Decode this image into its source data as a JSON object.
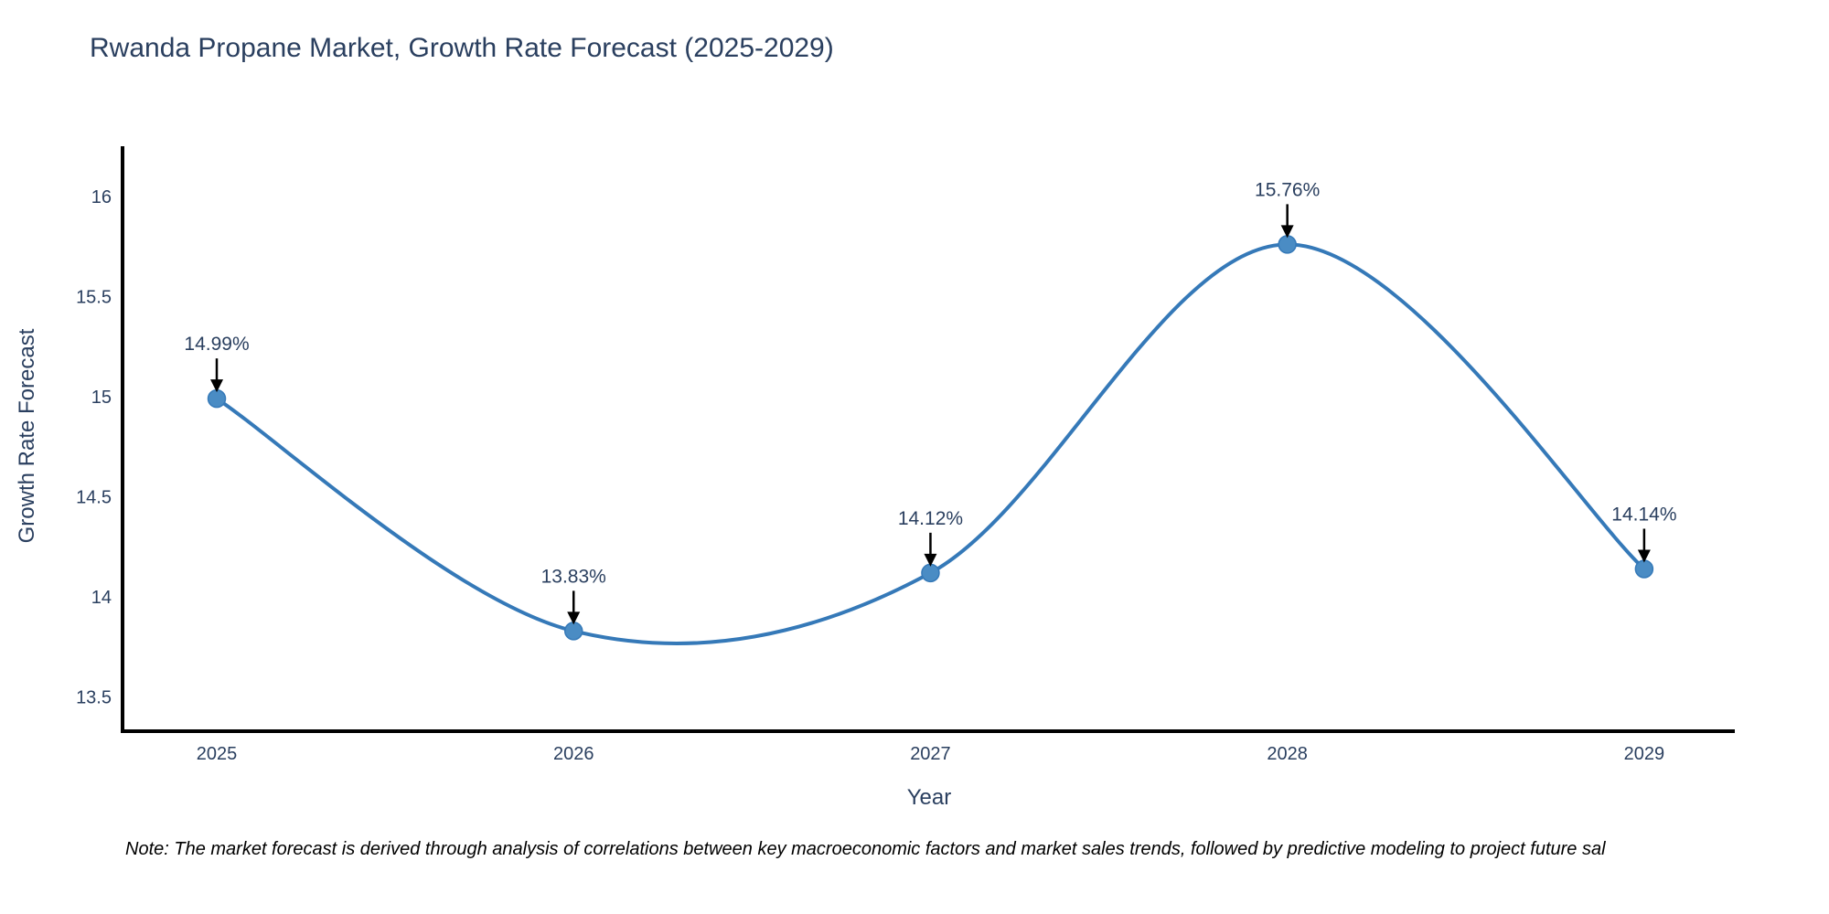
{
  "page": {
    "background": "#ffffff"
  },
  "chart_data": {
    "type": "line",
    "title": "Rwanda Propane Market, Growth Rate Forecast (2025-2029)",
    "xlabel": "Year",
    "ylabel": "Growth Rate Forecast",
    "x": [
      2025,
      2026,
      2027,
      2028,
      2029
    ],
    "y": [
      14.99,
      13.83,
      14.12,
      15.76,
      14.14
    ],
    "point_labels": [
      "14.99%",
      "13.83%",
      "14.12%",
      "15.76%",
      "14.14%"
    ],
    "x_tick_labels": [
      "2025",
      "2026",
      "2027",
      "2028",
      "2029"
    ],
    "y_ticks": [
      13.5,
      14,
      14.5,
      15,
      15.5,
      16
    ],
    "y_tick_labels": [
      "13.5",
      "14",
      "14.5",
      "15",
      "15.5",
      "16"
    ],
    "xlim": [
      2024.736,
      2029.254
    ],
    "ylim": [
      13.33,
      16.25
    ],
    "line_shape": "spline",
    "grid": false,
    "legend_position": "none",
    "colors": {
      "line": "#3579b8",
      "marker": "#4a8cc4",
      "axis": "#000000",
      "text": "#2a3f5f",
      "annotation_arrow": "#000000"
    }
  },
  "note": {
    "text": "Note: The market forecast is derived through analysis of correlations between key macroeconomic factors and market sales trends, followed by predictive modeling to project future sal"
  }
}
